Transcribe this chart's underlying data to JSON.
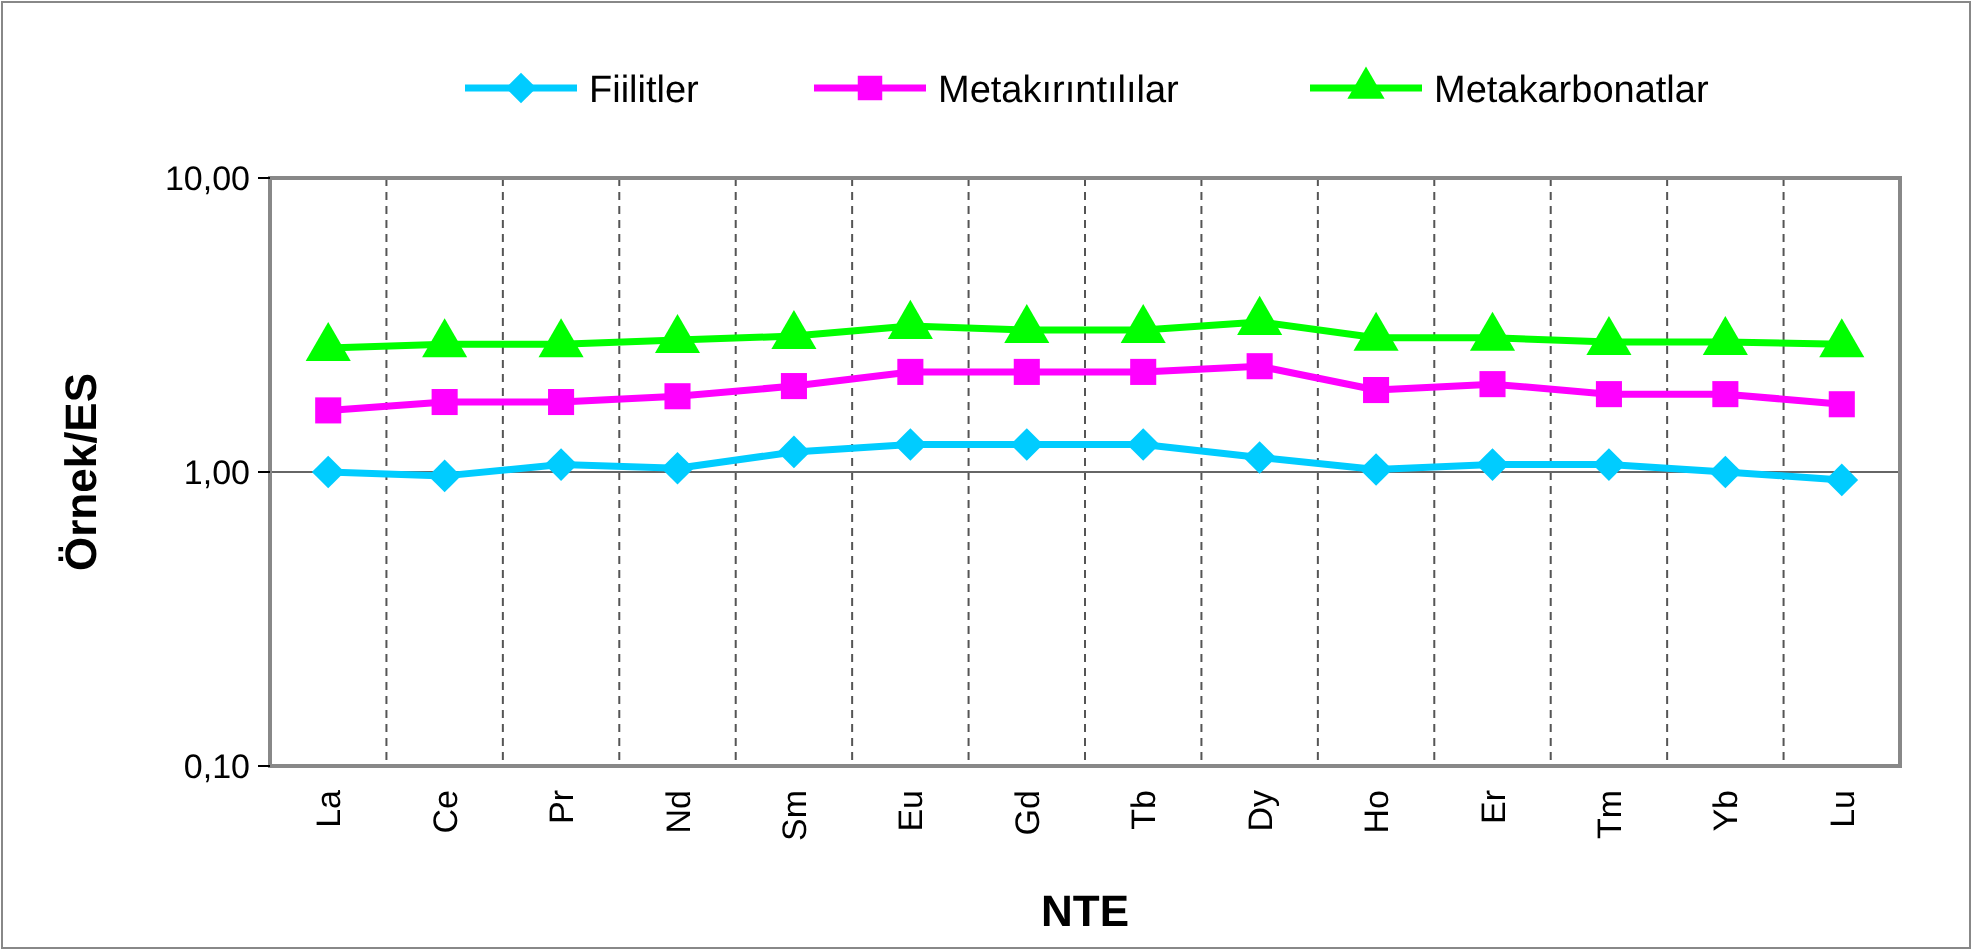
{
  "chart_data": {
    "type": "line",
    "xlabel": "NTE",
    "ylabel": "Örnek/ES",
    "log": true,
    "ylim": [
      0.1,
      10
    ],
    "yticks": [
      {
        "value": 0.1,
        "label": "0,10"
      },
      {
        "value": 1,
        "label": "1,00"
      },
      {
        "value": 10,
        "label": "10,00"
      }
    ],
    "grid": "x",
    "ref_lines": [
      {
        "axis": "y",
        "value": 1,
        "color": "#666666"
      }
    ],
    "legend": "top",
    "categories": [
      "La",
      "Ce",
      "Pr",
      "Nd",
      "Sm",
      "Eu",
      "Gd",
      "Tb",
      "Dy",
      "Ho",
      "Er",
      "Tm",
      "Yb",
      "Lu"
    ],
    "series": [
      {
        "name": "Fiilitler",
        "color": "#00ccff",
        "marker": "diamond",
        "values": [
          1.0,
          0.97,
          1.06,
          1.03,
          1.17,
          1.24,
          1.24,
          1.24,
          1.12,
          1.02,
          1.06,
          1.06,
          1.0,
          0.94
        ]
      },
      {
        "name": "Metakırıntılılar",
        "color": "#ff00ff",
        "marker": "square",
        "values": [
          1.62,
          1.73,
          1.73,
          1.81,
          1.96,
          2.19,
          2.19,
          2.19,
          2.29,
          1.9,
          1.99,
          1.84,
          1.84,
          1.7
        ]
      },
      {
        "name": "Metakarbonatlar",
        "color": "#00ff00",
        "marker": "triangle",
        "values": [
          2.64,
          2.72,
          2.72,
          2.81,
          2.9,
          3.14,
          3.04,
          3.04,
          3.24,
          2.86,
          2.86,
          2.77,
          2.77,
          2.72
        ]
      }
    ]
  }
}
